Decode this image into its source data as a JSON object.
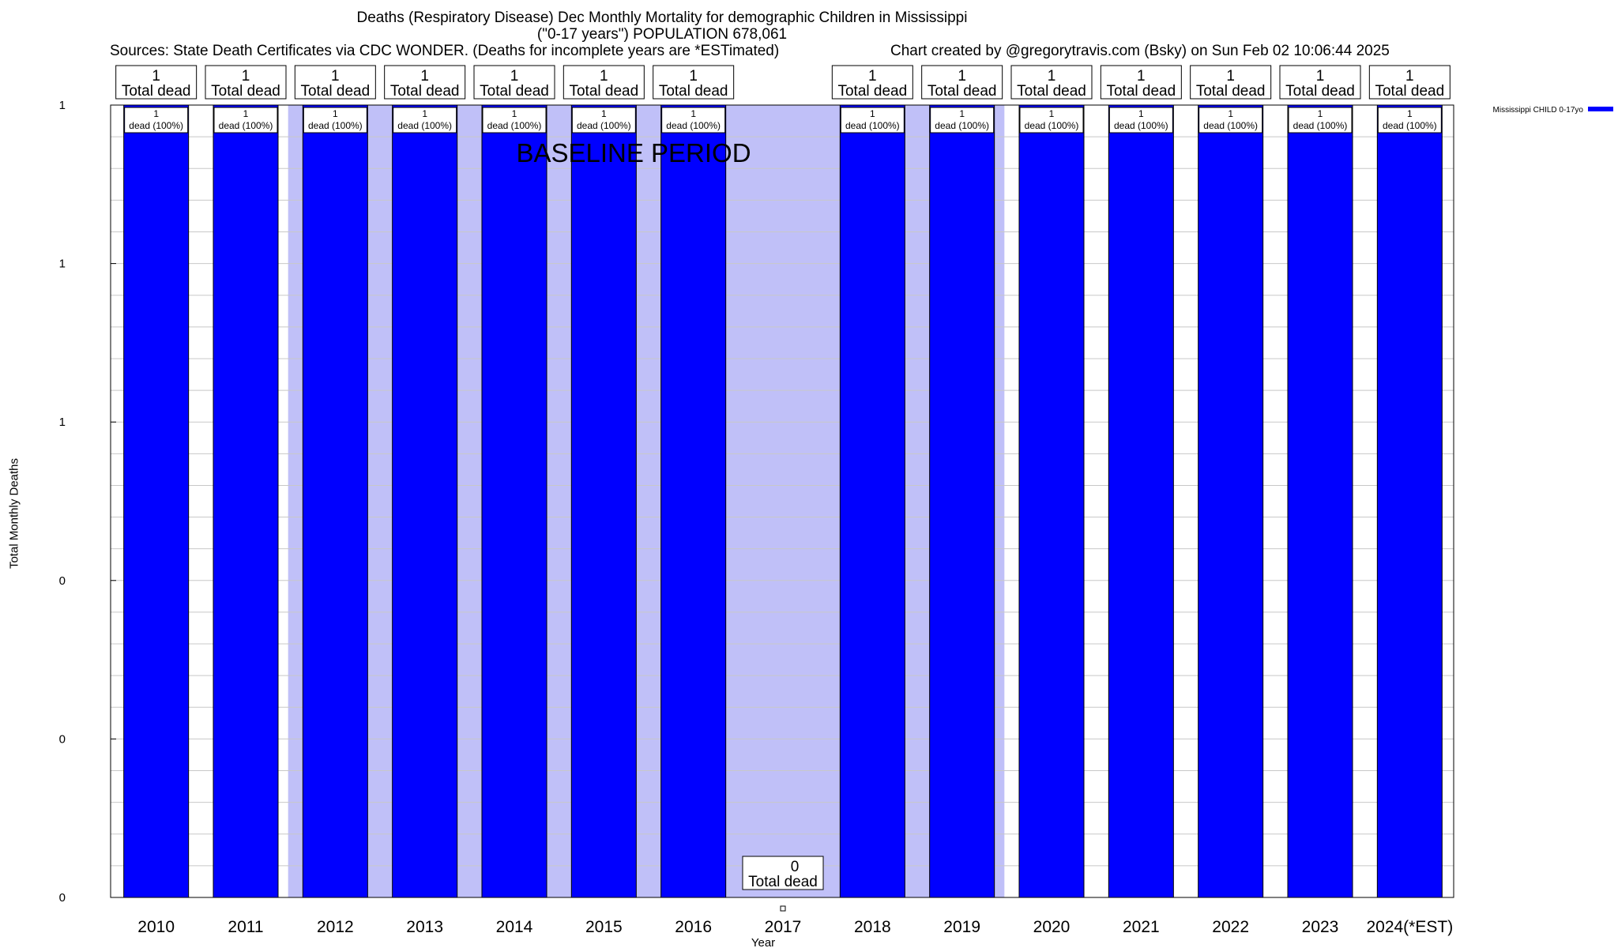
{
  "chart_data": {
    "type": "bar",
    "title": "Deaths (Respiratory Disease) Dec Monthly Mortality for demographic Children in Mississippi",
    "subtitle": "(\"0-17 years\") POPULATION 678,061",
    "sources": "Sources: State Death Certificates via CDC WONDER. (Deaths for incomplete years are *ESTimated)",
    "credit": "Chart created by @gregorytravis.com (Bsky) on Sun Feb 02 10:06:44 2025",
    "xlabel": "Year",
    "ylabel": "Total Monthly Deaths",
    "ylim": [
      0,
      1
    ],
    "ytick_labels": [
      "0",
      "0",
      "0",
      "1",
      "1",
      "1"
    ],
    "grid": true,
    "legend": {
      "position": "top-right",
      "label": "Mississippi CHILD 0-17yo"
    },
    "baseline_label": "BASELINE PERIOD",
    "baseline_range": [
      "2012",
      "2019"
    ],
    "categories": [
      "2010",
      "2011",
      "2012",
      "2013",
      "2014",
      "2015",
      "2016",
      "2017",
      "2018",
      "2019",
      "2020",
      "2021",
      "2022",
      "2023",
      "2024(*EST)"
    ],
    "series": [
      {
        "name": "Mississippi CHILD 0-17yo",
        "values": [
          1,
          1,
          1,
          1,
          1,
          1,
          1,
          0,
          1,
          1,
          1,
          1,
          1,
          1,
          1
        ]
      }
    ],
    "total_labels": [
      {
        "value": "1",
        "text": "Total dead"
      },
      {
        "value": "1",
        "text": "Total dead"
      },
      {
        "value": "1",
        "text": "Total dead"
      },
      {
        "value": "1",
        "text": "Total dead"
      },
      {
        "value": "1",
        "text": "Total dead"
      },
      {
        "value": "1",
        "text": "Total dead"
      },
      {
        "value": "1",
        "text": "Total dead"
      },
      {
        "value": "0",
        "text": "Total dead"
      },
      {
        "value": "1",
        "text": "Total dead"
      },
      {
        "value": "1",
        "text": "Total dead"
      },
      {
        "value": "1",
        "text": "Total dead"
      },
      {
        "value": "1",
        "text": "Total dead"
      },
      {
        "value": "1",
        "text": "Total dead"
      },
      {
        "value": "1",
        "text": "Total dead"
      },
      {
        "value": "1",
        "text": "Total dead"
      }
    ],
    "inner_labels": [
      {
        "value": "1",
        "text": "dead (100%)"
      },
      {
        "value": "1",
        "text": "dead (100%)"
      },
      {
        "value": "1",
        "text": "dead (100%)"
      },
      {
        "value": "1",
        "text": "dead (100%)"
      },
      {
        "value": "1",
        "text": "dead (100%)"
      },
      {
        "value": "1",
        "text": "dead (100%)"
      },
      {
        "value": "1",
        "text": "dead (100%)"
      },
      null,
      {
        "value": "1",
        "text": "dead (100%)"
      },
      {
        "value": "1",
        "text": "dead (100%)"
      },
      {
        "value": "1",
        "text": "dead (100%)"
      },
      {
        "value": "1",
        "text": "dead (100%)"
      },
      {
        "value": "1",
        "text": "dead (100%)"
      },
      {
        "value": "1",
        "text": "dead (100%)"
      },
      {
        "value": "1",
        "text": "dead (100%)"
      }
    ],
    "colors": {
      "bar": "#0000ff",
      "baseline": "#c0c0f8",
      "grid": "#c8c8c8"
    }
  }
}
